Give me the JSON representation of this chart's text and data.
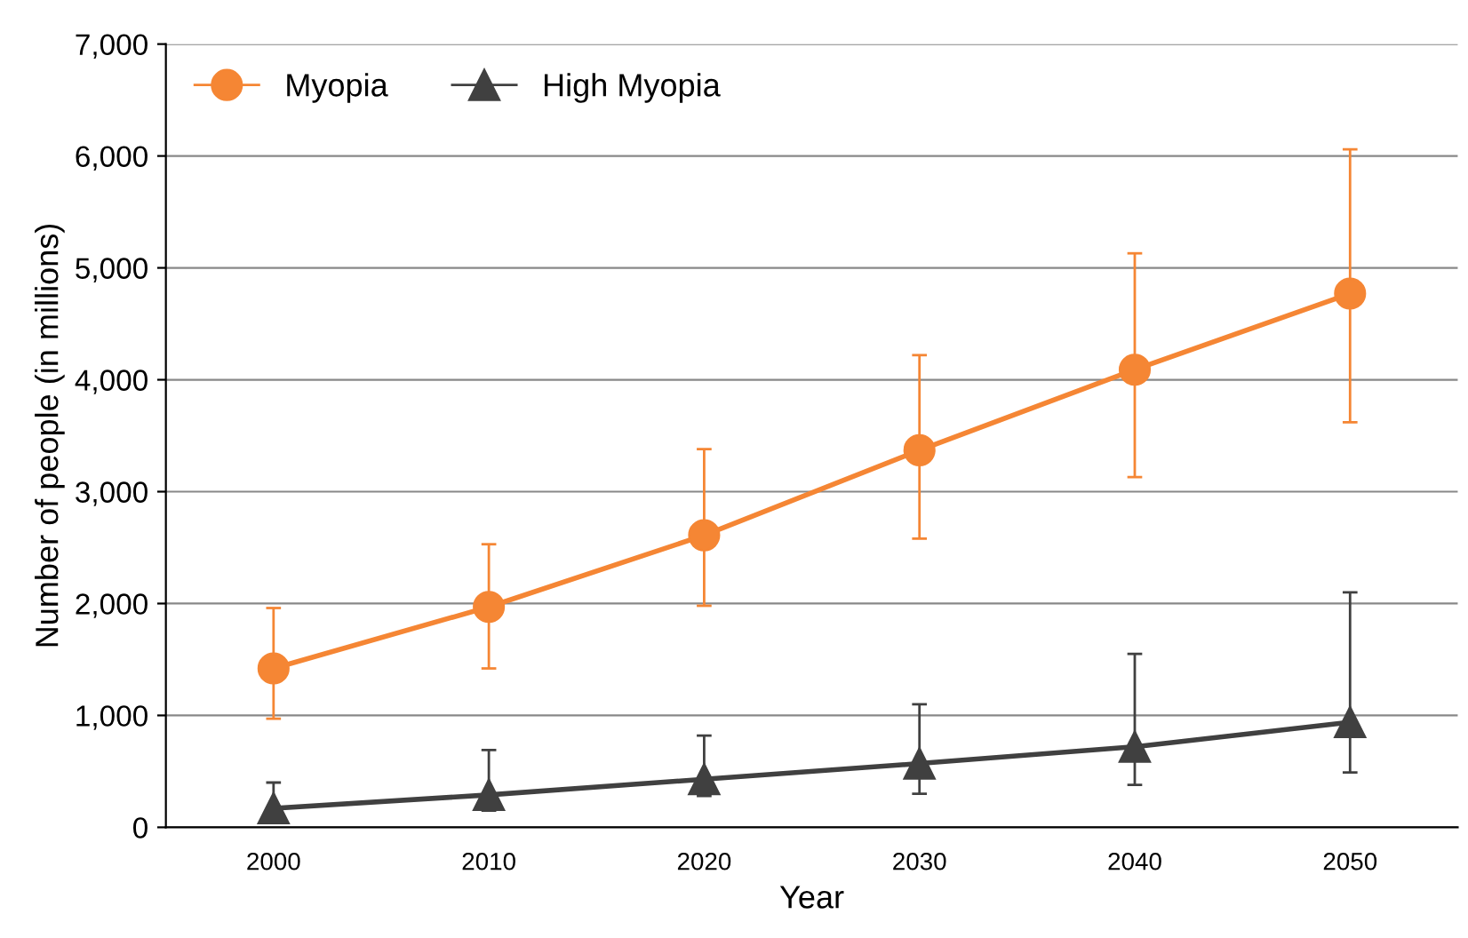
{
  "chart_data": {
    "type": "line",
    "xlabel": "Year",
    "ylabel": "Number of people (in millions)",
    "categories": [
      "2000",
      "2010",
      "2020",
      "2030",
      "2040",
      "2050"
    ],
    "series": [
      {
        "name": "Myopia",
        "color": "#f58634",
        "marker": "circle",
        "values": [
          1420,
          1970,
          2610,
          3370,
          4090,
          4770
        ],
        "errors": [
          [
            970,
            1960
          ],
          [
            1420,
            2530
          ],
          [
            1980,
            3380
          ],
          [
            2580,
            4220
          ],
          [
            3130,
            5130
          ],
          [
            3620,
            6060
          ]
        ]
      },
      {
        "name": "High Myopia",
        "color": "#404040",
        "marker": "triangle",
        "values": [
          170,
          290,
          430,
          570,
          720,
          940
        ],
        "errors": [
          [
            170,
            400
          ],
          [
            150,
            690
          ],
          [
            280,
            820
          ],
          [
            300,
            1100
          ],
          [
            380,
            1550
          ],
          [
            490,
            2100
          ]
        ]
      }
    ],
    "ylim": [
      0,
      7000
    ],
    "yticks": [
      {
        "value": 0,
        "label": "0"
      },
      {
        "value": 1000,
        "label": "1,000"
      },
      {
        "value": 2000,
        "label": "2,000"
      },
      {
        "value": 3000,
        "label": "3,000"
      },
      {
        "value": 4000,
        "label": "4,000"
      },
      {
        "value": 5000,
        "label": "5,000"
      },
      {
        "value": 6000,
        "label": "6,000"
      },
      {
        "value": 7000,
        "label": "7,000"
      }
    ],
    "grid": "y",
    "legend": "top left",
    "line_style": "solid"
  }
}
